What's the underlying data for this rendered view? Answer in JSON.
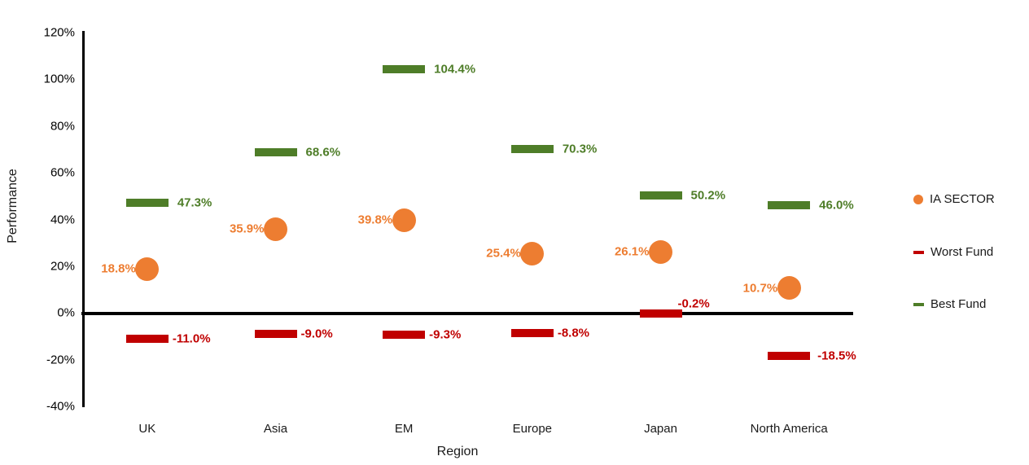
{
  "chart_data": {
    "type": "scatter",
    "xlabel": "Region",
    "ylabel": "Performance",
    "categories": [
      "UK",
      "Asia",
      "EM",
      "Europe",
      "Japan",
      "North America"
    ],
    "ylim": [
      -40,
      120
    ],
    "ytick_values": [
      120,
      100,
      80,
      60,
      40,
      20,
      0,
      -20,
      -40
    ],
    "ytick_labels": [
      "120%",
      "100%",
      "80%",
      "60%",
      "40%",
      "20%",
      "0%",
      "-20%",
      "-40%"
    ],
    "grid": false,
    "legend_position": "right",
    "axis_color": "#000000",
    "series": [
      {
        "name": "IA SECTOR",
        "marker": "circle",
        "color": "#ED7D31",
        "values": [
          18.8,
          35.9,
          39.8,
          25.4,
          26.1,
          10.7
        ],
        "labels": [
          "18.8%",
          "35.9%",
          "39.8%",
          "25.4%",
          "26.1%",
          "10.7%"
        ],
        "label_side": "left",
        "label_dx": -14
      },
      {
        "name": "Worst Fund",
        "marker": "dash",
        "color": "#C00000",
        "values": [
          -11.0,
          -9.0,
          -9.3,
          -8.8,
          -0.2,
          -18.5
        ],
        "labels": [
          "-11.0%",
          "-9.0%",
          "-9.3%",
          "-8.8%",
          "-0.2%",
          "-18.5%"
        ],
        "label_side": "right",
        "label_dx": 31,
        "label_offsets": [
          [
            0,
            0
          ],
          [
            0,
            0
          ],
          [
            0,
            0
          ],
          [
            0,
            0
          ],
          [
            -10,
            -12
          ],
          [
            4,
            0
          ]
        ]
      },
      {
        "name": "Best Fund",
        "marker": "dash",
        "color": "#4E7D28",
        "values": [
          47.3,
          68.6,
          104.4,
          70.3,
          50.2,
          46.0
        ],
        "labels": [
          "47.3%",
          "68.6%",
          "104.4%",
          "70.3%",
          "50.2%",
          "46.0%"
        ],
        "label_side": "right",
        "label_dx": 37
      }
    ]
  }
}
